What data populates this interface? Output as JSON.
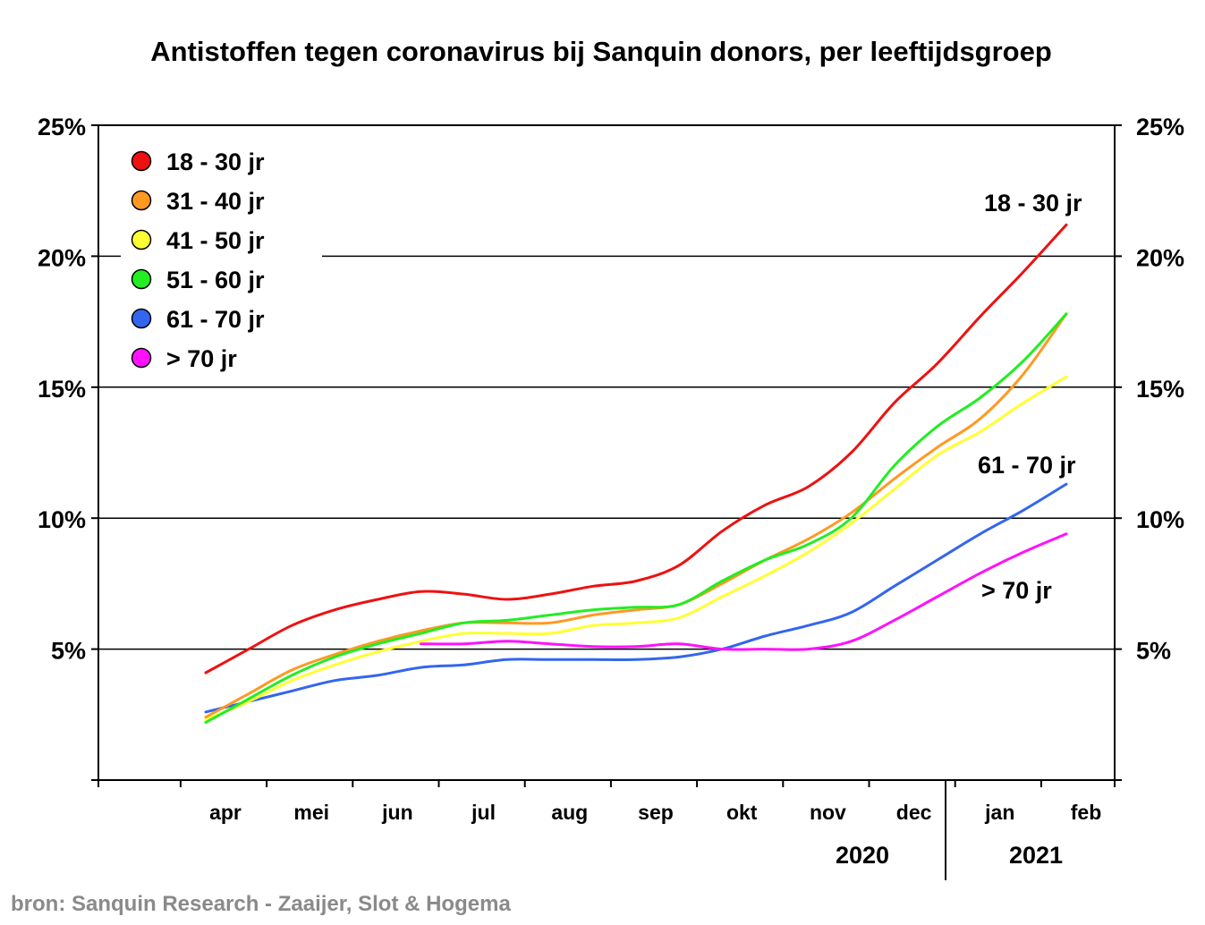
{
  "chart_data": {
    "type": "line",
    "title": "Antistoffen tegen coronavirus bij Sanquin donors, per leeftijdsgroep",
    "categories": [
      "apr",
      "mei",
      "jun",
      "jul",
      "aug",
      "sep",
      "okt",
      "nov",
      "dec",
      "jan",
      "feb"
    ],
    "years": [
      "2020",
      "2021"
    ],
    "ylim": [
      0,
      25
    ],
    "y_ticks": [
      "25%",
      "20%",
      "15%",
      "10%",
      "5%"
    ],
    "grid": "horizontal",
    "legend_position": "top-left",
    "series": [
      {
        "name": "18 - 30 jr",
        "color": "#ee1111",
        "x": [
          0.0,
          0.5,
          1.0,
          1.5,
          2.0,
          2.5,
          3.0,
          3.5,
          4.0,
          4.5,
          5.0,
          5.5,
          6.0,
          6.5,
          7.0,
          7.5,
          8.0,
          8.5,
          9.0,
          9.5,
          10.0
        ],
        "values": [
          4.1,
          5.0,
          5.9,
          6.5,
          6.9,
          7.2,
          7.1,
          6.9,
          7.1,
          7.4,
          7.6,
          8.2,
          9.5,
          10.5,
          11.2,
          12.5,
          14.4,
          15.9,
          17.7,
          19.4,
          21.2
        ]
      },
      {
        "name": "31 - 40 jr",
        "color": "#ff9922",
        "x": [
          0.0,
          0.5,
          1.0,
          1.5,
          2.0,
          2.5,
          3.0,
          3.5,
          4.0,
          4.5,
          5.0,
          5.5,
          6.0,
          6.5,
          7.0,
          7.5,
          8.0,
          8.5,
          9.0,
          9.5,
          10.0
        ],
        "values": [
          2.4,
          3.3,
          4.2,
          4.8,
          5.3,
          5.7,
          6.0,
          6.0,
          6.0,
          6.3,
          6.5,
          6.7,
          7.5,
          8.4,
          9.2,
          10.2,
          11.5,
          12.7,
          13.8,
          15.5,
          17.8
        ]
      },
      {
        "name": "41 - 50 jr",
        "color": "#ffff33",
        "x": [
          0.0,
          0.5,
          1.0,
          1.5,
          2.0,
          2.5,
          3.0,
          3.5,
          4.0,
          4.5,
          5.0,
          5.5,
          6.0,
          6.5,
          7.0,
          7.5,
          8.0,
          8.5,
          9.0,
          9.5,
          10.0
        ],
        "values": [
          2.3,
          3.0,
          3.8,
          4.4,
          4.9,
          5.3,
          5.6,
          5.6,
          5.6,
          5.9,
          6.0,
          6.2,
          7.0,
          7.8,
          8.7,
          9.8,
          11.1,
          12.4,
          13.3,
          14.4,
          15.4
        ]
      },
      {
        "name": "51 - 60 jr",
        "color": "#22ee22",
        "x": [
          0.0,
          0.5,
          1.0,
          1.5,
          2.0,
          2.5,
          3.0,
          3.5,
          4.0,
          4.5,
          5.0,
          5.5,
          6.0,
          6.5,
          7.0,
          7.5,
          8.0,
          8.5,
          9.0,
          9.5,
          10.0
        ],
        "values": [
          2.2,
          3.1,
          4.0,
          4.7,
          5.2,
          5.6,
          6.0,
          6.1,
          6.3,
          6.5,
          6.6,
          6.7,
          7.6,
          8.4,
          9.0,
          10.0,
          12.0,
          13.5,
          14.6,
          16.0,
          17.8
        ]
      },
      {
        "name": "61 - 70 jr",
        "color": "#3366ee",
        "x": [
          0.0,
          0.5,
          1.0,
          1.5,
          2.0,
          2.5,
          3.0,
          3.5,
          4.0,
          4.5,
          5.0,
          5.5,
          6.0,
          6.5,
          7.0,
          7.5,
          8.0,
          8.5,
          9.0,
          9.5,
          10.0
        ],
        "values": [
          2.6,
          3.0,
          3.4,
          3.8,
          4.0,
          4.3,
          4.4,
          4.6,
          4.6,
          4.6,
          4.6,
          4.7,
          5.0,
          5.5,
          5.9,
          6.4,
          7.4,
          8.4,
          9.4,
          10.3,
          11.3
        ]
      },
      {
        "name": "> 70 jr",
        "color": "#ff11ff",
        "x": [
          2.5,
          3.0,
          3.5,
          4.0,
          4.5,
          5.0,
          5.5,
          6.0,
          6.5,
          7.0,
          7.5,
          8.0,
          8.5,
          9.0,
          9.5,
          10.0
        ],
        "values": [
          5.2,
          5.2,
          5.3,
          5.2,
          5.1,
          5.1,
          5.2,
          5.0,
          5.0,
          5.0,
          5.3,
          6.1,
          7.0,
          7.9,
          8.7,
          9.4
        ]
      }
    ],
    "annotations": [
      "18 - 30 jr",
      "61 - 70 jr",
      "> 70 jr"
    ]
  },
  "source": "bron: Sanquin Research - Zaaijer, Slot & Hogema"
}
